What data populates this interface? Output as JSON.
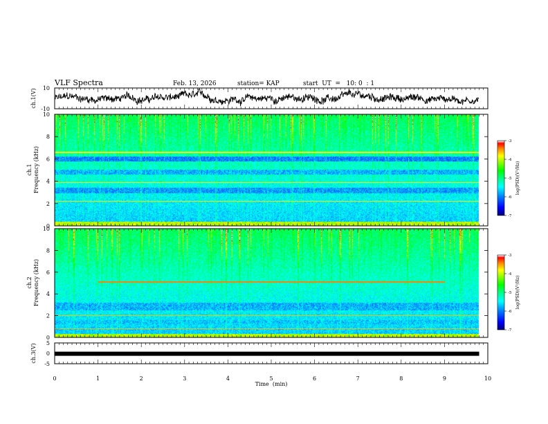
{
  "header": {
    "title": "VLF Spectra",
    "date": "Feb. 13, 2026",
    "station": "station= KAP",
    "start": "start  UT  =   10: 0  : 1"
  },
  "colorbar_label": "log(PSD)(V²/Hz)",
  "colors": {
    "spectrogram_scale": [
      "#000080",
      "#0000ff",
      "#0080ff",
      "#00ffff",
      "#00ff80",
      "#00ff00",
      "#80ff00",
      "#ffff00",
      "#ff8000",
      "#ff0000",
      "#ffffff"
    ],
    "trace": "#000000"
  },
  "chart_data": [
    {
      "type": "line",
      "name": "ch1-waveform",
      "ylabel": "ch.1(V)",
      "ylim": [
        -10,
        10
      ],
      "yticks": [
        "10",
        "-10"
      ],
      "xlim": [
        0,
        10
      ],
      "data_end_min": 9.8,
      "description_of_values": "Noisy voltage trace fluctuating roughly between -8 and 8 V"
    },
    {
      "type": "heatmap",
      "name": "ch1-spectrogram",
      "ylabel": "Frequency (kHz)",
      "channel": "ch.1",
      "ylim": [
        0,
        10
      ],
      "yticks": [
        "0",
        "2",
        "4",
        "6",
        "8",
        "10"
      ],
      "xlim": [
        0,
        10
      ],
      "data_end_min": 9.8,
      "colorbar": {
        "range": [
          -7,
          -3
        ],
        "ticks": [
          "-3",
          "-4",
          "-5",
          "-6",
          "-7"
        ]
      },
      "bands_khz": [
        {
          "from": 6.2,
          "to": 5.8,
          "level": -6.0
        },
        {
          "from": 5.0,
          "to": 4.6,
          "level": -5.8
        },
        {
          "from": 3.4,
          "to": 2.9,
          "level": -5.9
        }
      ]
    },
    {
      "type": "heatmap",
      "name": "ch2-spectrogram",
      "ylabel": "Frequency (kHz)",
      "channel": "ch.2",
      "ylim": [
        0,
        10
      ],
      "yticks": [
        "0",
        "2",
        "4",
        "6",
        "8",
        "10"
      ],
      "xlim": [
        0,
        10
      ],
      "data_end_min": 9.8,
      "colorbar": {
        "range": [
          -7,
          -3
        ],
        "ticks": [
          "-3",
          "-4",
          "-5",
          "-6",
          "-7"
        ]
      },
      "bands_khz": [
        {
          "from": 3.2,
          "to": 2.5,
          "level": -5.8
        },
        {
          "from": 1.6,
          "to": 1.2,
          "level": -5.7
        }
      ],
      "lines_khz": [
        {
          "f": 5.1,
          "t0": 1.0,
          "t1": 9.0
        }
      ]
    },
    {
      "type": "line",
      "name": "ch3-waveform",
      "ylabel": "ch.3(V)",
      "ylim": [
        -5,
        5
      ],
      "yticks": [
        "5",
        "0",
        "-5"
      ],
      "xlim": [
        0,
        10
      ],
      "data_end_min": 9.8,
      "value_v": -0.2
    }
  ],
  "x_axis": {
    "label": "Time  (min)",
    "ticks": [
      "0",
      "1",
      "2",
      "3",
      "4",
      "5",
      "6",
      "7",
      "8",
      "9",
      "10"
    ]
  }
}
